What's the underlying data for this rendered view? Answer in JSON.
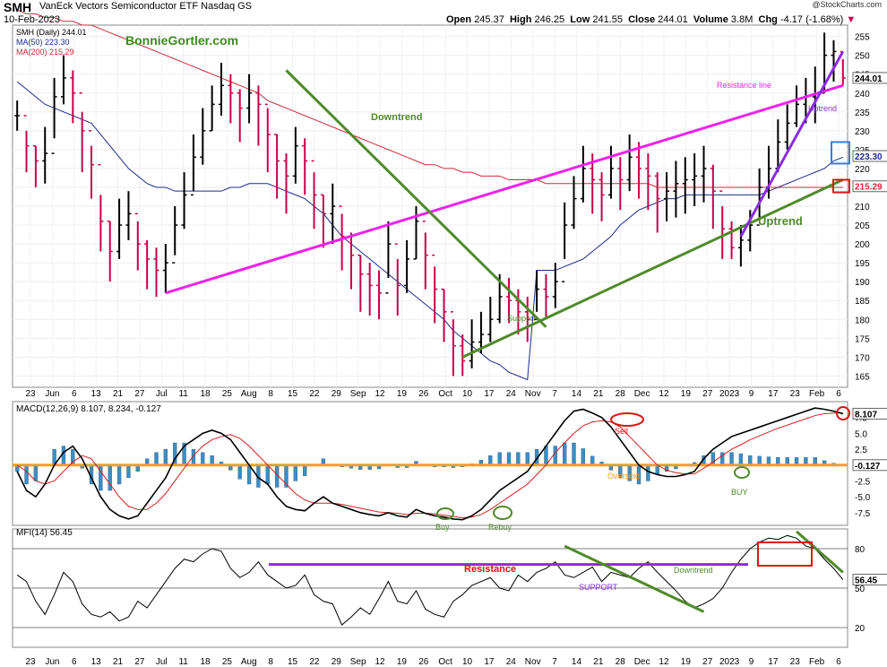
{
  "header": {
    "symbol": "SMH",
    "name": "VanEck Vectors Semiconductor ETF",
    "exchange": "Nasdaq GS",
    "date": "10-Feb-2023",
    "open_label": "Open",
    "open": "245.37",
    "high_label": "High",
    "high": "246.25",
    "low_label": "Low",
    "low": "241.55",
    "close_label": "Close",
    "close": "244.01",
    "volume_label": "Volume",
    "volume": "3.8M",
    "chg_label": "Chg",
    "chg": "-4.17 (-1.68%)",
    "chg_arrow": "▼",
    "provider": "@StockCharts.com"
  },
  "legend": {
    "price": "SMH (Daily) 244.01",
    "ma50": "MA(50) 223.30",
    "ma200": "MA(200) 215.29",
    "watermark": "BonnieGortler.com"
  },
  "annotations": {
    "downtrend": "Downtrend",
    "resistance_line": "Resistance line",
    "uptrend_small": "Uptrend",
    "uptrend": "Uptrend",
    "support": "Support",
    "sell": "Sell",
    "oversold": "Oversold",
    "buy": "Buy",
    "rebuy": "Rebuy",
    "buy2": "BUY",
    "resistance": "Resistance",
    "mfi_support": "SUPPORT",
    "mfi_downtrend": "Downtrend"
  },
  "right_tags": {
    "close": "244.01",
    "ma50": "223.30",
    "ma200": "215.29",
    "macd": "8.107",
    "hist": "-0.127",
    "mfi": "56.45"
  },
  "macd_label": "MACD(12,26,9) 8.107, 8.234, -0.127",
  "mfi_label": "MFI(14) 56.45",
  "colors": {
    "up": "#000000",
    "down": "#c8004a",
    "ma50": "#1e2a8a",
    "ma200": "#cc2a3a",
    "resistance": "#ee22ee",
    "trend": "#4f8a2b",
    "uptrend2": "#8a2be2",
    "hist": "#3a8ec4",
    "zero": "#f0a020",
    "circle_red": "#e01010",
    "box_blue": "#3b7dd8"
  },
  "chart_data": [
    {
      "type": "candlestick",
      "title": "SMH (Daily)",
      "ylim": [
        162,
        258
      ],
      "yticks": [
        165,
        170,
        175,
        180,
        185,
        190,
        195,
        200,
        205,
        210,
        215,
        220,
        225,
        230,
        235,
        240,
        245,
        250,
        255
      ],
      "x_ticks": [
        "23",
        "Jun",
        "6",
        "13",
        "21",
        "27",
        "Jul",
        "11",
        "18",
        "25",
        "Aug",
        "8",
        "15",
        "22",
        "29",
        "Sep",
        "12",
        "19",
        "26",
        "Oct",
        "10",
        "17",
        "24",
        "Nov",
        "7",
        "14",
        "21",
        "28",
        "Dec",
        "12",
        "19",
        "27",
        "2023",
        "9",
        "17",
        "23",
        "Feb",
        "6"
      ],
      "closes": [
        234,
        226,
        222,
        224,
        239,
        244,
        240,
        230,
        221,
        206,
        198,
        205,
        208,
        200,
        196,
        193,
        195,
        205,
        213,
        223,
        230,
        237,
        242,
        240,
        236,
        240,
        237,
        229,
        222,
        218,
        226,
        222,
        213,
        208,
        210,
        202,
        197,
        192,
        189,
        187,
        200,
        189,
        196,
        206,
        197,
        188,
        182,
        173,
        169,
        174,
        176,
        180,
        186,
        185,
        182,
        180,
        188,
        186,
        190,
        205,
        212,
        220,
        217,
        213,
        220,
        217,
        223,
        220,
        218,
        212,
        214,
        216,
        217,
        218,
        220,
        214,
        204,
        199,
        201,
        205,
        215,
        220,
        227,
        232,
        237,
        239,
        240,
        250,
        251,
        244
      ],
      "lows": [
        230,
        219,
        215,
        216,
        228,
        237,
        232,
        219,
        212,
        198,
        190,
        196,
        201,
        193,
        188,
        186,
        187,
        197,
        204,
        214,
        221,
        230,
        234,
        232,
        227,
        232,
        226,
        219,
        212,
        208,
        216,
        213,
        204,
        199,
        200,
        193,
        188,
        182,
        181,
        180,
        191,
        181,
        187,
        196,
        188,
        179,
        174,
        165,
        165,
        167,
        171,
        174,
        179,
        179,
        176,
        174,
        182,
        180,
        183,
        196,
        204,
        211,
        208,
        206,
        212,
        209,
        214,
        212,
        209,
        203,
        206,
        207,
        208,
        210,
        211,
        204,
        196,
        196,
        194,
        198,
        207,
        212,
        219,
        225,
        231,
        232,
        232,
        240,
        243,
        242
      ],
      "highs": [
        238,
        230,
        226,
        231,
        244,
        250,
        246,
        235,
        226,
        213,
        206,
        212,
        214,
        206,
        201,
        199,
        200,
        210,
        219,
        229,
        236,
        242,
        248,
        245,
        241,
        245,
        242,
        236,
        229,
        224,
        231,
        228,
        219,
        213,
        216,
        208,
        203,
        197,
        195,
        193,
        206,
        196,
        201,
        210,
        203,
        194,
        188,
        180,
        176,
        180,
        182,
        186,
        192,
        191,
        188,
        186,
        193,
        192,
        195,
        211,
        218,
        226,
        224,
        219,
        226,
        223,
        229,
        227,
        224,
        219,
        219,
        222,
        223,
        224,
        226,
        221,
        210,
        206,
        205,
        209,
        220,
        226,
        233,
        237,
        242,
        244,
        247,
        256,
        254,
        249
      ],
      "ma50": [
        243,
        241,
        239,
        237,
        236,
        235,
        234,
        233,
        232,
        229,
        226,
        223,
        220,
        218,
        216,
        215,
        215,
        214,
        214,
        214,
        214,
        214,
        214,
        215,
        215,
        216,
        216,
        216,
        215,
        214,
        213,
        212,
        210,
        208,
        205,
        202,
        200,
        198,
        196,
        194,
        192,
        190,
        188,
        186,
        184,
        182,
        180,
        177,
        175,
        173,
        171,
        169,
        168,
        166,
        165,
        164,
        193,
        193,
        193,
        194,
        195,
        196,
        198,
        200,
        202,
        205,
        207,
        209,
        210,
        211,
        212,
        212,
        213,
        213,
        213,
        213,
        213,
        213,
        213,
        213,
        213,
        214,
        215,
        216,
        217,
        218,
        219,
        220,
        222,
        223
      ],
      "ma200": [
        262,
        261,
        261,
        260,
        260,
        259,
        259,
        258,
        258,
        257,
        256,
        255,
        254,
        253,
        252,
        251,
        250,
        249,
        248,
        247,
        246,
        245,
        244,
        243,
        242,
        241,
        240,
        238,
        237,
        236,
        235,
        234,
        233,
        232,
        231,
        230,
        229,
        228,
        227,
        226,
        225,
        224,
        223,
        222,
        221,
        221,
        220,
        220,
        219,
        219,
        218,
        218,
        218,
        217,
        217,
        217,
        217,
        216,
        216,
        216,
        216,
        216,
        216,
        216,
        216,
        216,
        216,
        216,
        216,
        215,
        215,
        215,
        215,
        215,
        215,
        215,
        215,
        215,
        215,
        215,
        215,
        215,
        215,
        215,
        215,
        215,
        215,
        215,
        215,
        215
      ]
    },
    {
      "type": "line",
      "title": "MACD(12,26,9)",
      "ylim": [
        -9.5,
        10
      ],
      "yticks": [
        -7.5,
        -5.0,
        -2.5,
        2.5,
        5.0,
        7.5
      ],
      "series": [
        {
          "name": "MACD",
          "values": [
            -1,
            -4,
            -5,
            -3,
            0,
            2,
            3,
            1,
            -2,
            -5,
            -7,
            -8,
            -8.5,
            -8,
            -6,
            -4,
            -2,
            1,
            3,
            4,
            5,
            5.5,
            5,
            4,
            2,
            0,
            -2,
            -3,
            -5,
            -6.5,
            -7,
            -7.2,
            -6,
            -5,
            -6,
            -6.5,
            -7,
            -7.5,
            -7.8,
            -8,
            -7.5,
            -8,
            -8.2,
            -7,
            -7.6,
            -8,
            -8.2,
            -8.5,
            -8.6,
            -8,
            -7,
            -5.5,
            -4,
            -3,
            -2,
            -1,
            1,
            3,
            5,
            7,
            8.5,
            8.8,
            8.2,
            7.5,
            6,
            4,
            2,
            0,
            -1,
            -1.5,
            -1.8,
            -1.8,
            -1.5,
            -1,
            1,
            2.5,
            3.5,
            4.5,
            5,
            5.5,
            6,
            6.5,
            7,
            7.5,
            8,
            8.5,
            9,
            8.8,
            8.5,
            8.1
          ]
        },
        {
          "name": "Signal",
          "values": [
            0,
            -1,
            -2.5,
            -3,
            -2.5,
            -1,
            0.5,
            1.5,
            1,
            -1,
            -3,
            -5,
            -6.5,
            -7,
            -7,
            -6,
            -4.5,
            -2.5,
            -0.5,
            1.5,
            3,
            4,
            4.5,
            4.8,
            4.2,
            3,
            1.5,
            0,
            -1.5,
            -3,
            -4.5,
            -5.5,
            -6,
            -6,
            -6,
            -6.2,
            -6.5,
            -6.8,
            -7.1,
            -7.4,
            -7.5,
            -7.6,
            -7.8,
            -7.6,
            -7.6,
            -7.7,
            -7.9,
            -8.1,
            -8.3,
            -8.2,
            -7.8,
            -7,
            -6,
            -5,
            -4,
            -3,
            -1.5,
            0,
            2,
            3.5,
            5,
            6.2,
            6.8,
            7,
            6.8,
            6,
            4.5,
            3,
            1.5,
            0,
            -0.8,
            -1.2,
            -1.4,
            -1.4,
            -0.5,
            0.5,
            1.5,
            2.5,
            3.2,
            4,
            4.6,
            5.2,
            5.8,
            6.3,
            6.8,
            7.3,
            7.8,
            8.1,
            8.2,
            8.2
          ]
        },
        {
          "name": "Histogram",
          "values": [
            -1,
            -3,
            -2.5,
            0,
            2.5,
            3,
            2.5,
            -0.5,
            -3,
            -4,
            -4,
            -3,
            -2,
            -1,
            1,
            2,
            2.5,
            3.5,
            3.5,
            2.5,
            2,
            1.5,
            0.5,
            -0.8,
            -2.2,
            -3,
            -3.5,
            -3,
            -3.5,
            -3.5,
            -2.5,
            -1.7,
            0,
            1,
            0,
            -0.3,
            -0.5,
            -0.7,
            -0.7,
            -0.6,
            0,
            -0.4,
            -0.4,
            0.6,
            0,
            -0.3,
            -0.3,
            -0.4,
            -0.3,
            0.2,
            0.8,
            1.5,
            2,
            2,
            2,
            2,
            2.5,
            3,
            3,
            3.5,
            3.5,
            2.6,
            1.4,
            0.5,
            -0.8,
            -2,
            -2.5,
            -3,
            -2.5,
            -1.5,
            -1,
            -0.6,
            -0.1,
            0.4,
            1.5,
            2,
            2,
            2,
            1.8,
            1.5,
            1.4,
            1.3,
            1.2,
            1.2,
            1.2,
            1.2,
            1.2,
            0.7,
            0.3,
            -0.1
          ]
        }
      ]
    },
    {
      "type": "line",
      "title": "MFI(14)",
      "ylim": [
        5,
        95
      ],
      "yticks": [
        20,
        50,
        80
      ],
      "series": [
        {
          "name": "MFI",
          "values": [
            60,
            55,
            40,
            30,
            45,
            62,
            55,
            38,
            30,
            28,
            32,
            25,
            28,
            40,
            35,
            45,
            55,
            65,
            72,
            70,
            76,
            80,
            78,
            65,
            58,
            62,
            70,
            60,
            55,
            50,
            52,
            60,
            45,
            40,
            38,
            22,
            28,
            35,
            30,
            42,
            55,
            40,
            38,
            48,
            34,
            30,
            28,
            40,
            45,
            52,
            55,
            58,
            50,
            48,
            60,
            55,
            62,
            65,
            70,
            60,
            58,
            62,
            66,
            55,
            62,
            60,
            58,
            65,
            70,
            62,
            55,
            48,
            40,
            35,
            38,
            42,
            50,
            62,
            72,
            80,
            85,
            88,
            87,
            90,
            88,
            82,
            80,
            72,
            65,
            56.45
          ]
        }
      ]
    }
  ]
}
